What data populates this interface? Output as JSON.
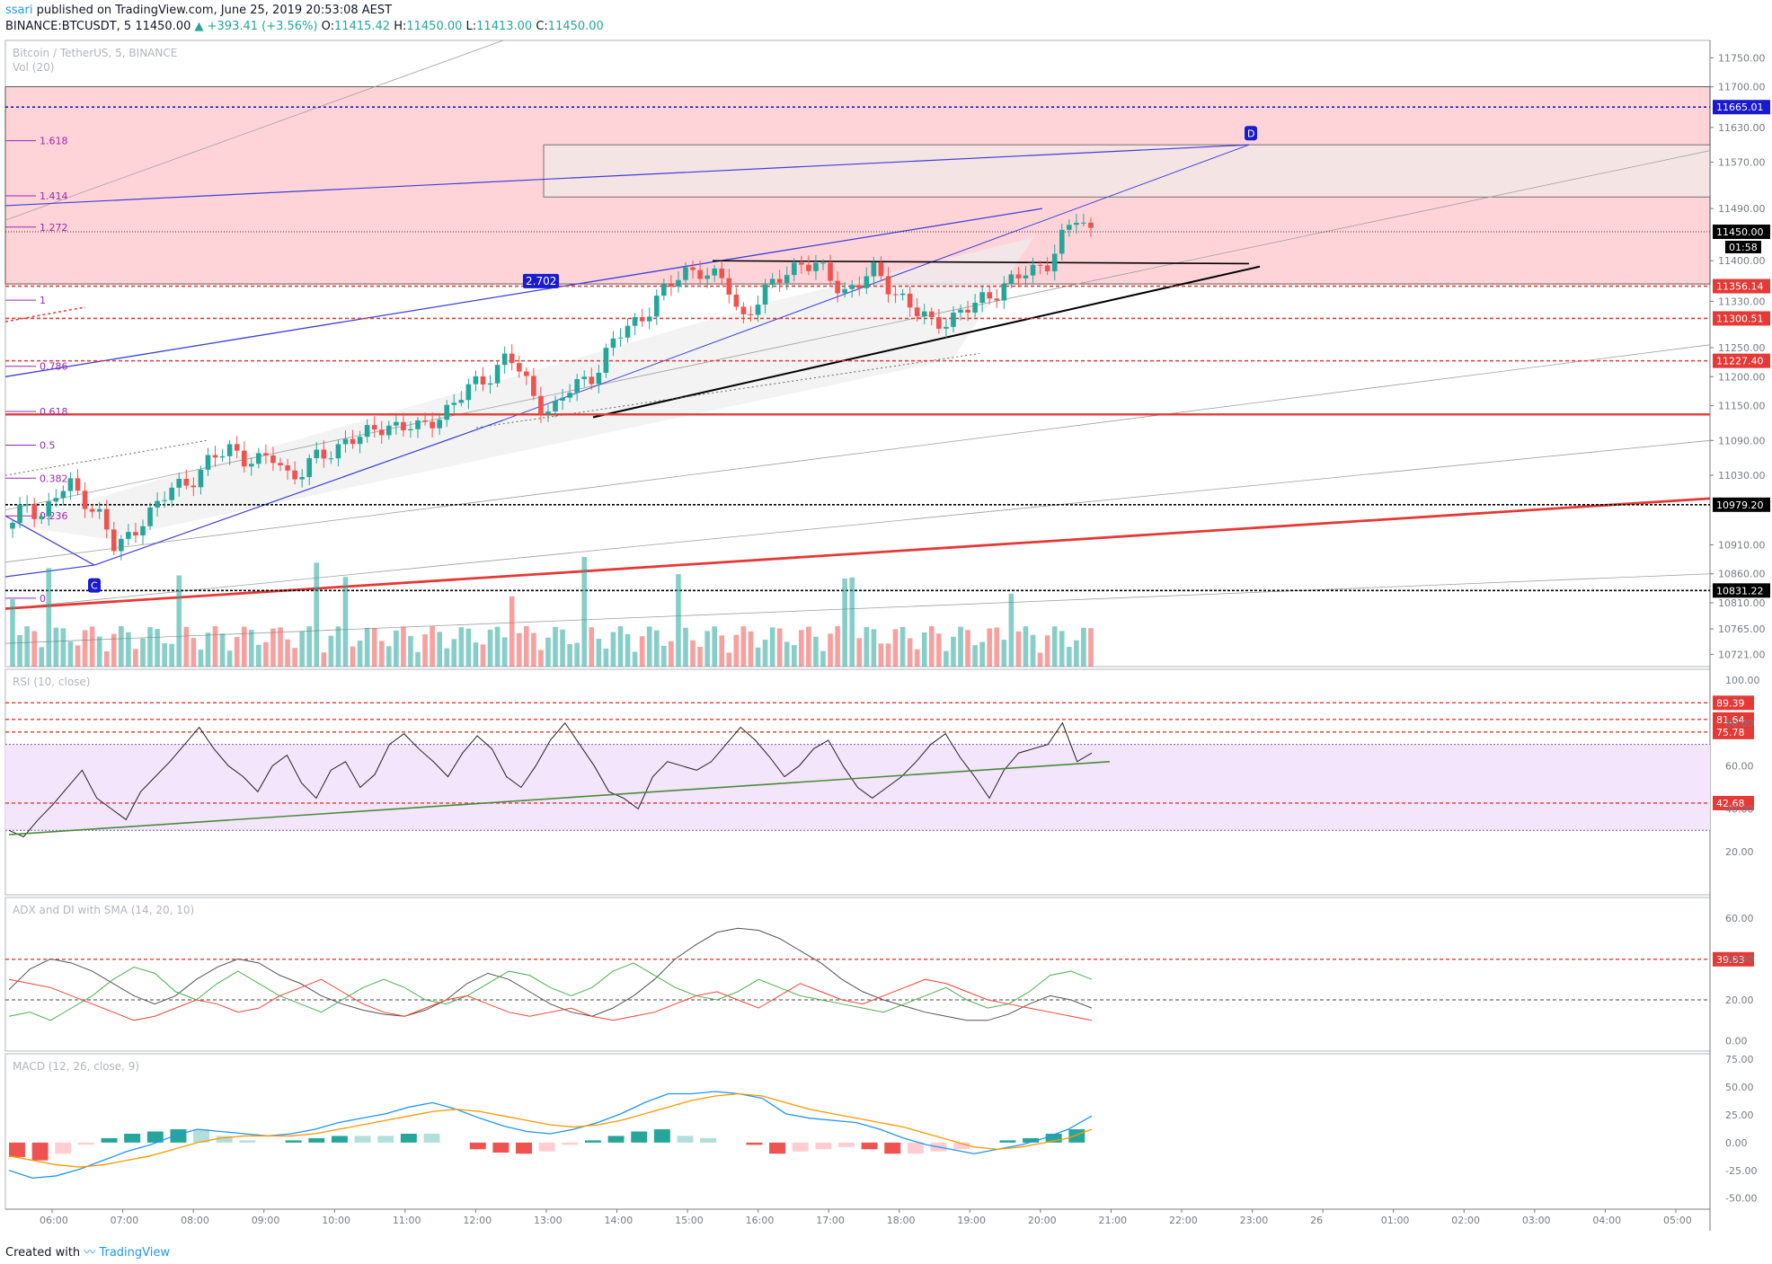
{
  "header": {
    "user": "ssari",
    "published": "published on TradingView.com, June 25, 2019 20:53:08 AEST",
    "symbol": "BINANCE:BTCUSDT, 5",
    "price": "11450.00",
    "change": "▲ +393.41 (+3.56%)",
    "o_label": "O:",
    "o": "11415.42",
    "h_label": "H:",
    "h": "11450.00",
    "l_label": "L:",
    "l": "11413.00",
    "c_label": "C:",
    "c": "11450.00"
  },
  "footer": {
    "created": "Created with",
    "brand": "TradingView"
  },
  "colors": {
    "up": "#26a69a",
    "down": "#ef5350",
    "zone": "#ffcdd2",
    "rsi_band": "#f3e5fc"
  },
  "chart_data": [
    {
      "type": "candlestick",
      "title": "Bitcoin / TetherUS, 5, BINANCE",
      "subtitle": "Vol (20)",
      "ylim": [
        10700,
        11780
      ],
      "y_ticks": [
        11750,
        11700,
        11630,
        11570,
        11490,
        11400,
        11330,
        11250,
        11200,
        11150,
        11090,
        11030,
        10910,
        10860,
        10810,
        10765,
        10721
      ],
      "y_tick_labels": [
        "11750.00",
        "11700.00",
        "11630.00",
        "11570.00",
        "11490.00",
        "11400.00",
        "11330.00",
        "11250.00",
        "11200.00",
        "11150.00",
        "11090.00",
        "11030.00",
        "10910.00",
        "10860.00",
        "10810.00",
        "10765.00",
        "10721.00"
      ],
      "x_ticks": [
        "06:00",
        "07:00",
        "08:00",
        "09:00",
        "10:00",
        "11:00",
        "12:00",
        "13:00",
        "14:00",
        "15:00",
        "16:00",
        "17:00",
        "18:00",
        "19:00",
        "20:00",
        "21:00",
        "22:00",
        "23:00",
        "26",
        "01:00",
        "02:00",
        "03:00",
        "04:00",
        "05:00"
      ],
      "close_path": [
        10940,
        10985,
        10960,
        10995,
        11010,
        10990,
        10960,
        10900,
        10925,
        10960,
        10975,
        11010,
        11020,
        11040,
        11060,
        11080,
        11060,
        11050,
        11060,
        11030,
        11040,
        11060,
        11070,
        11100,
        11090,
        11110,
        11120,
        11115,
        11105,
        11130,
        11150,
        11170,
        11190,
        11210,
        11240,
        11195,
        11160,
        11140,
        11170,
        11190,
        11210,
        11250,
        11280,
        11300,
        11330,
        11350,
        11380,
        11390,
        11370,
        11360,
        11300,
        11330,
        11350,
        11380,
        11400,
        11390,
        11370,
        11350,
        11360,
        11380,
        11360,
        11340,
        11310,
        11290,
        11300,
        11310,
        11320,
        11340,
        11360,
        11370,
        11380,
        11400,
        11440,
        11470,
        11450
      ],
      "last_price": "11450.00",
      "countdown": "01:58",
      "price_levels": [
        {
          "value": 11665.01,
          "label": "11665.01",
          "style": "blue-dotted"
        },
        {
          "value": 11356.14,
          "label": "11356.14",
          "style": "red-dashed"
        },
        {
          "value": 11300.51,
          "label": "11300.51",
          "style": "red-dashed"
        },
        {
          "value": 11227.4,
          "label": "11227.40",
          "style": "red-dashed"
        },
        {
          "value": 10979.2,
          "label": "10979.20",
          "style": "black-dashed"
        },
        {
          "value": 10831.22,
          "label": "10831.22",
          "style": "black-dashed"
        }
      ],
      "fib_levels": [
        {
          "label": "1.618",
          "value": 11607
        },
        {
          "label": "1.414",
          "value": 11512
        },
        {
          "label": "1.272",
          "value": 11458
        },
        {
          "label": "1",
          "value": 11332
        },
        {
          "label": "0.786",
          "value": 11218
        },
        {
          "label": "0.618",
          "value": 11140
        },
        {
          "label": "0.5",
          "value": 11082
        },
        {
          "label": "0.382",
          "value": 11025
        },
        {
          "label": "0.236",
          "value": 10960
        },
        {
          "label": "0",
          "value": 10818
        }
      ],
      "pattern_labels": [
        "C",
        "D"
      ],
      "ratio_label": "2.702"
    },
    {
      "type": "line",
      "title": "RSI (10, close)",
      "ylim": [
        0,
        105
      ],
      "y_tick_labels": [
        "100.00",
        "80.00",
        "60.00",
        "40.00",
        "20.00"
      ],
      "y_ticks": [
        100,
        80,
        60,
        40,
        20
      ],
      "levels": [
        {
          "value": 89.39,
          "label": "89.39"
        },
        {
          "value": 81.64,
          "label": "81.64"
        },
        {
          "value": 75.78,
          "label": "75.78"
        },
        {
          "value": 42.68,
          "label": "42.68"
        }
      ],
      "band": [
        30,
        70
      ],
      "values": [
        30,
        27,
        35,
        42,
        50,
        58,
        45,
        40,
        35,
        48,
        55,
        62,
        70,
        78,
        68,
        60,
        55,
        48,
        60,
        65,
        52,
        45,
        58,
        62,
        50,
        56,
        70,
        75,
        68,
        62,
        55,
        66,
        74,
        68,
        55,
        50,
        60,
        72,
        80,
        70,
        60,
        48,
        45,
        40,
        55,
        62,
        60,
        58,
        62,
        70,
        78,
        72,
        64,
        55,
        60,
        68,
        72,
        60,
        50,
        45,
        50,
        55,
        62,
        70,
        75,
        64,
        55,
        45,
        58,
        66,
        68,
        70,
        80,
        62,
        66
      ]
    },
    {
      "type": "line",
      "title": "ADX and DI with SMA (14, 20, 10)",
      "ylim": [
        -5,
        70
      ],
      "y_tick_labels": [
        "60.00",
        "40.00",
        "20.00",
        "0.00"
      ],
      "y_ticks": [
        60,
        40,
        20,
        0
      ],
      "levels": [
        {
          "value": 39.83,
          "label": "39.83"
        }
      ],
      "series": [
        {
          "name": "ADX",
          "color": "#555555",
          "values": [
            25,
            35,
            40,
            38,
            34,
            28,
            22,
            18,
            22,
            30,
            36,
            40,
            38,
            32,
            28,
            22,
            18,
            15,
            13,
            12,
            15,
            20,
            28,
            33,
            30,
            24,
            18,
            14,
            12,
            16,
            22,
            30,
            40,
            47,
            53,
            55,
            54,
            50,
            44,
            38,
            30,
            24,
            20,
            17,
            14,
            12,
            10,
            10,
            13,
            18,
            22,
            20,
            16
          ]
        },
        {
          "name": "+DI",
          "color": "#4caf50",
          "values": [
            12,
            14,
            10,
            16,
            22,
            30,
            36,
            33,
            24,
            20,
            28,
            34,
            28,
            22,
            18,
            14,
            20,
            26,
            30,
            26,
            20,
            18,
            22,
            28,
            34,
            32,
            26,
            22,
            26,
            34,
            38,
            32,
            26,
            22,
            20,
            24,
            30,
            26,
            22,
            20,
            18,
            16,
            14,
            18,
            22,
            26,
            20,
            16,
            18,
            24,
            32,
            34,
            30
          ]
        },
        {
          "name": "-DI",
          "color": "#f44336",
          "values": [
            30,
            28,
            26,
            22,
            18,
            14,
            10,
            12,
            16,
            20,
            18,
            14,
            16,
            22,
            26,
            30,
            24,
            18,
            14,
            12,
            16,
            20,
            22,
            18,
            14,
            12,
            14,
            16,
            12,
            10,
            12,
            14,
            18,
            22,
            24,
            20,
            16,
            22,
            28,
            24,
            20,
            18,
            22,
            26,
            30,
            28,
            24,
            20,
            18,
            16,
            14,
            12,
            10
          ]
        }
      ]
    },
    {
      "type": "bar",
      "title": "MACD (12, 26, close, 9)",
      "ylim": [
        -60,
        80
      ],
      "y_tick_labels": [
        "75.00",
        "50.00",
        "25.00",
        "0.00",
        "-25.00",
        "-50.00"
      ],
      "y_ticks": [
        75,
        50,
        25,
        0,
        -25,
        -50
      ],
      "series": [
        {
          "name": "MACD",
          "color": "#2196f3",
          "values": [
            -25,
            -32,
            -30,
            -24,
            -16,
            -8,
            -2,
            6,
            12,
            10,
            8,
            6,
            8,
            12,
            18,
            22,
            26,
            32,
            36,
            30,
            22,
            15,
            10,
            8,
            12,
            18,
            26,
            36,
            44,
            44,
            46,
            44,
            40,
            26,
            22,
            20,
            18,
            12,
            4,
            -2,
            -6,
            -10,
            -6,
            -2,
            4,
            12,
            24
          ]
        },
        {
          "name": "Signal",
          "color": "#ff9800",
          "values": [
            -12,
            -16,
            -20,
            -22,
            -20,
            -16,
            -12,
            -6,
            0,
            4,
            6,
            6,
            6,
            8,
            12,
            16,
            20,
            24,
            28,
            30,
            28,
            24,
            20,
            16,
            14,
            16,
            20,
            26,
            32,
            38,
            42,
            44,
            42,
            36,
            30,
            26,
            22,
            18,
            14,
            8,
            2,
            -4,
            -6,
            -4,
            0,
            4,
            12
          ]
        },
        {
          "name": "Histogram",
          "color": "#26a69a",
          "values": [
            -13,
            -16,
            -10,
            -2,
            4,
            8,
            10,
            12,
            12,
            6,
            2,
            0,
            2,
            4,
            6,
            6,
            6,
            8,
            8,
            0,
            -6,
            -9,
            -10,
            -8,
            -2,
            2,
            6,
            10,
            12,
            6,
            4,
            0,
            -2,
            -10,
            -8,
            -6,
            -4,
            -6,
            -10,
            -10,
            -8,
            -6,
            0,
            2,
            4,
            8,
            12
          ]
        }
      ]
    }
  ]
}
